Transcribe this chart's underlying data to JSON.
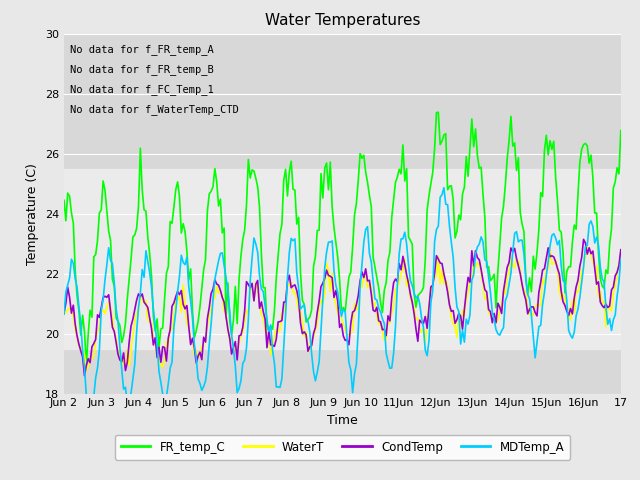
{
  "title": "Water Temperatures",
  "xlabel": "Time",
  "ylabel": "Temperature (C)",
  "ylim": [
    18,
    30
  ],
  "xlim": [
    0,
    15
  ],
  "x_tick_labels": [
    "Jun 2",
    "Jun 3",
    "Jun 4",
    "Jun 5",
    "Jun 6",
    "Jun 7",
    "Jun 8",
    "Jun 9",
    "Jun 10",
    "11Jun",
    "12Jun",
    "13Jun",
    "14Jun",
    "15Jun",
    "16Jun",
    "17"
  ],
  "no_data_messages": [
    "No data for f_FR_temp_A",
    "No data for f_FR_temp_B",
    "No data for f_FC_Temp_1",
    "No data for f_WaterTemp_CTD"
  ],
  "band_y_low": 19.5,
  "band_y_high": 25.5,
  "legend_entries": [
    "FR_temp_C",
    "WaterT",
    "CondTemp",
    "MDTemp_A"
  ],
  "line_colors": [
    "#00ff00",
    "#ffff00",
    "#9900cc",
    "#00ccff"
  ],
  "background_color": "#e8e8e8",
  "plot_bg_color": "#d8d8d8",
  "band_color": "#ebebeb",
  "figsize": [
    6.4,
    4.8
  ],
  "dpi": 100
}
